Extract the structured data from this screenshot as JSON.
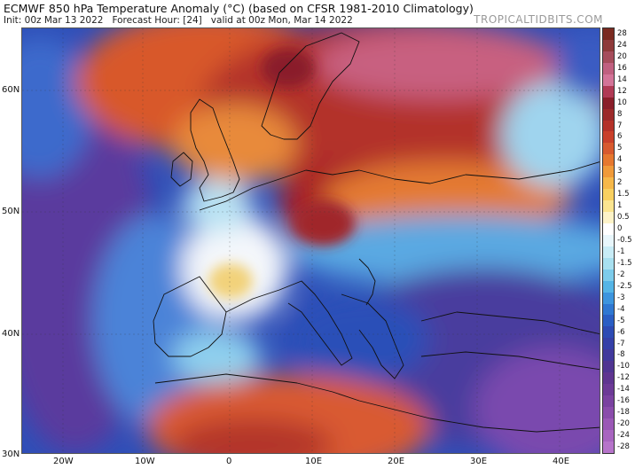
{
  "header": {
    "title": "ECMWF 850 hPa Temperature Anomaly (°C) (based on CFSR 1981-2010 Climatology)",
    "init": "Init: 00z Mar 13 2022",
    "forecast": "Forecast Hour: [24]",
    "valid": "valid at 00z Mon, Mar 14 2022",
    "brand": "TROPICALTIDBITS.COM"
  },
  "axes": {
    "lat_labels": [
      "60N",
      "50N",
      "40N",
      "30N"
    ],
    "lon_labels": [
      "20W",
      "10W",
      "0",
      "10E",
      "20E",
      "30E",
      "40E"
    ]
  },
  "colorbar": {
    "labels": [
      "28",
      "24",
      "20",
      "16",
      "14",
      "12",
      "10",
      "8",
      "7",
      "6",
      "5",
      "4",
      "3",
      "2",
      "1.5",
      "1",
      "0.5",
      "0",
      "-0.5",
      "-1",
      "-1.5",
      "-2",
      "-2.5",
      "-3",
      "-4",
      "-5",
      "-6",
      "-7",
      "-8",
      "-10",
      "-12",
      "-14",
      "-16",
      "-18",
      "-20",
      "-24",
      "-28"
    ],
    "colors": [
      "#7a2a20",
      "#8e3a3a",
      "#a64d5c",
      "#c06080",
      "#d37498",
      "#b03a55",
      "#8a1f2a",
      "#9c2a2a",
      "#b43228",
      "#c9402a",
      "#d85a2e",
      "#e6782f",
      "#f09a3a",
      "#f6b84a",
      "#f8d060",
      "#fbe590",
      "#fdf3c8",
      "#ffffff",
      "#e8f6fb",
      "#c8ecf6",
      "#a8e0f0",
      "#7dcceb",
      "#55b5e6",
      "#3d95de",
      "#2f78d2",
      "#2a5ec4",
      "#2d4bb4",
      "#3540a8",
      "#41399c",
      "#503592",
      "#5f3590",
      "#6c3a96",
      "#7a42a0",
      "#8a4cab",
      "#9a58b6",
      "#a865c0",
      "#b674ca"
    ]
  },
  "map": {
    "land_color": "#cc3333",
    "ocean_warm": "#e0603a",
    "cold_color": "#2a5ec4",
    "deep_cold": "#4e3a9a"
  }
}
